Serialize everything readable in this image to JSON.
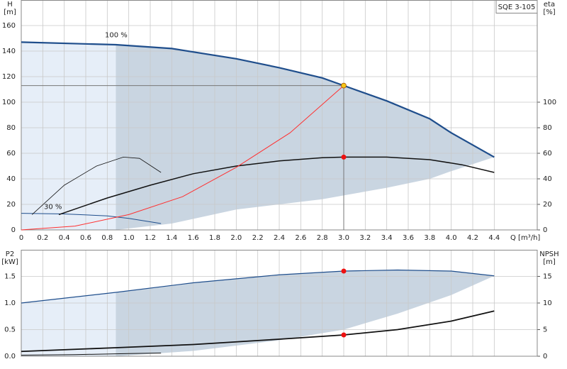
{
  "chart_data": [
    {
      "type": "line",
      "title": "SQE 3-105",
      "ylabel": "H",
      "yunit": "[m]",
      "y2label": "eta",
      "y2unit": "[%]",
      "xlabel": "Q [m³/h]",
      "xlim": [
        0,
        4.8
      ],
      "xticks": [
        {
          "value": 0,
          "label": "0"
        },
        0.2,
        0.4,
        0.6,
        0.8,
        {
          "value": 1,
          "label": "1.0"
        },
        1.2,
        1.4,
        1.6,
        1.8,
        {
          "value": 2,
          "label": "2.0"
        },
        2.2,
        2.4,
        2.6,
        2.8,
        {
          "value": 3,
          "label": "3.0"
        },
        3.2,
        3.4,
        3.6,
        3.8,
        {
          "value": 4,
          "label": "4.0"
        },
        4.2,
        4.4
      ],
      "ylim": [
        0,
        180
      ],
      "yticks": [
        0,
        20,
        40,
        60,
        80,
        100,
        120,
        140,
        160
      ],
      "y2lim": [
        0,
        180
      ],
      "y2ticks": [
        0,
        20,
        40,
        60,
        80,
        100
      ],
      "grid": true,
      "shades": [
        {
          "color": "#e6eef8",
          "x": [
            0,
            0.88
          ],
          "upper": [
            147,
            145
          ],
          "lower": [
            0,
            0
          ]
        },
        {
          "color": "#c9d5e1",
          "x": [
            0.88,
            1.4,
            2.0,
            2.4,
            2.8,
            3.0,
            3.4,
            3.8,
            4.0,
            4.4
          ],
          "upper": [
            145,
            142,
            134,
            127,
            119,
            113,
            101,
            87,
            76,
            57
          ],
          "lower": [
            0,
            5,
            16,
            20,
            24,
            27,
            33,
            40,
            46,
            57
          ]
        }
      ],
      "series": [
        {
          "name": "100 %",
          "color": "#1f4e8c",
          "width": 2.2,
          "x": [
            0,
            0.88,
            1.4,
            2.0,
            2.4,
            2.8,
            3.0,
            3.4,
            3.8,
            4.0,
            4.4
          ],
          "values": [
            147,
            145,
            142,
            134,
            127,
            119,
            113,
            101,
            87,
            76,
            57
          ]
        },
        {
          "name": "30 %",
          "color": "#1f4e8c",
          "width": 1,
          "x": [
            0,
            0.4,
            0.8,
            1.0,
            1.3
          ],
          "values": [
            13,
            12.5,
            11,
            9,
            5
          ]
        },
        {
          "color": "#111111",
          "width": 1.5,
          "axis": "y2",
          "x": [
            0.35,
            0.8,
            1.2,
            1.6,
            2.0,
            2.4,
            2.8,
            3.0,
            3.4,
            3.8,
            4.1,
            4.4
          ],
          "values": [
            12,
            25,
            35,
            44,
            50,
            54,
            56.5,
            57,
            57,
            55,
            51,
            45
          ]
        },
        {
          "color": "#111111",
          "width": 0.8,
          "axis": "y2",
          "x": [
            0.1,
            0.4,
            0.7,
            0.95,
            1.1,
            1.3
          ],
          "values": [
            12,
            35,
            50,
            57,
            56,
            45
          ]
        },
        {
          "color": "#ff3030",
          "width": 1,
          "x": [
            0,
            0.5,
            1.0,
            1.5,
            2.0,
            2.5,
            3.0
          ],
          "values": [
            0,
            3,
            12,
            26,
            49,
            76,
            113
          ]
        }
      ],
      "points": [
        {
          "x": 3.0,
          "y": 113,
          "color": "#f5c518",
          "guides": true
        },
        {
          "x": 3.0,
          "y": 57,
          "color": "#ee1111"
        }
      ]
    },
    {
      "type": "line",
      "ylabel": "P2",
      "yunit": "[kW]",
      "y2label": "NPSH",
      "y2unit": "[m]",
      "xlim": [
        0,
        4.8
      ],
      "xticks": [
        0,
        0.2,
        0.4,
        0.6,
        0.8,
        1,
        1.2,
        1.4,
        1.6,
        1.8,
        2,
        2.2,
        2.4,
        2.6,
        2.8,
        3,
        3.2,
        3.4,
        3.6,
        3.8,
        4,
        4.2,
        4.4
      ],
      "ylim": [
        0,
        2
      ],
      "yticks": [
        {
          "value": 0,
          "label": "0.0"
        },
        0.5,
        {
          "value": 1,
          "label": "1.0"
        },
        1.5
      ],
      "y2lim": [
        0,
        20
      ],
      "y2ticks": [
        0,
        5,
        10,
        15
      ],
      "grid": true,
      "shades": [
        {
          "color": "#e6eef8",
          "x": [
            0,
            0.88
          ],
          "upper": [
            1.0,
            1.2
          ],
          "lower": [
            0,
            0
          ]
        },
        {
          "color": "#c9d5e1",
          "x": [
            0.88,
            1.6,
            2.4,
            3.0,
            3.5,
            4.0,
            4.4
          ],
          "upper": [
            1.2,
            1.38,
            1.53,
            1.6,
            1.62,
            1.6,
            1.51
          ],
          "lower": [
            0,
            0.1,
            0.3,
            0.5,
            0.8,
            1.15,
            1.51
          ]
        }
      ],
      "series": [
        {
          "color": "#1f4e8c",
          "width": 1.2,
          "x": [
            0,
            0.88,
            1.6,
            2.4,
            3.0,
            3.5,
            4.0,
            4.4
          ],
          "values": [
            1.0,
            1.2,
            1.38,
            1.53,
            1.6,
            1.62,
            1.6,
            1.51
          ]
        },
        {
          "color": "#111111",
          "width": 1,
          "x": [
            0,
            0.5,
            1.0,
            1.3
          ],
          "values": [
            0.02,
            0.03,
            0.05,
            0.06
          ]
        },
        {
          "color": "#111111",
          "width": 1.8,
          "axis": "y2",
          "x": [
            0,
            0.88,
            1.6,
            2.4,
            3.0,
            3.5,
            4.0,
            4.4
          ],
          "values": [
            0.9,
            1.6,
            2.2,
            3.2,
            4.0,
            5.0,
            6.6,
            8.5
          ]
        }
      ],
      "points": [
        {
          "x": 3.0,
          "y": 1.6,
          "color": "#ee1111"
        },
        {
          "x": 3.0,
          "y": 4.0,
          "color": "#ee1111",
          "axis": "y2"
        }
      ]
    }
  ]
}
